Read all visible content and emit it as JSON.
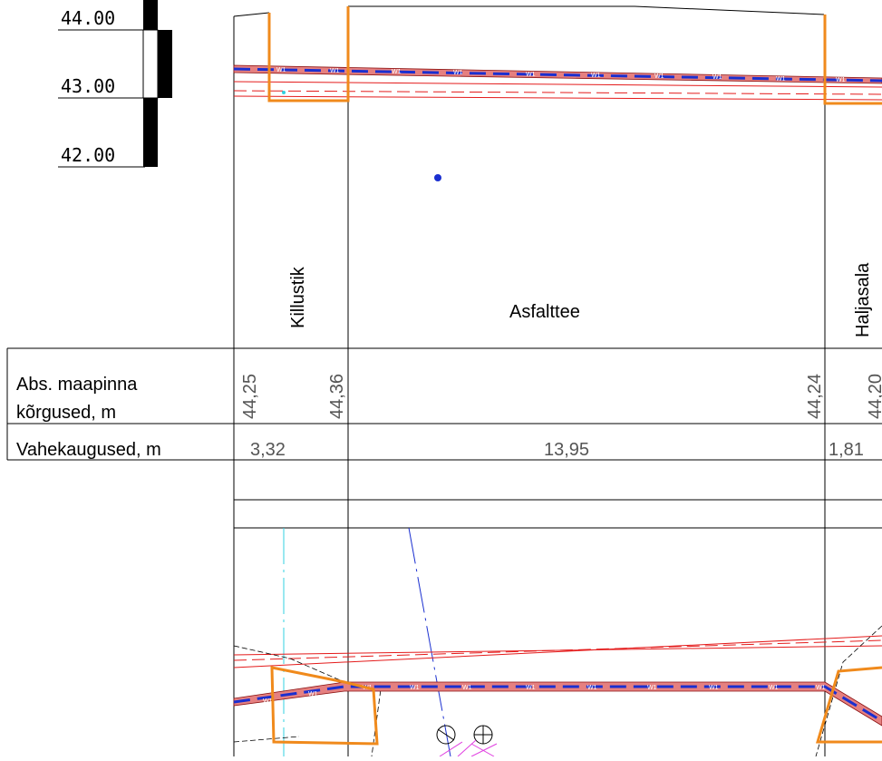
{
  "scale": {
    "labels": [
      "44.00",
      "43.00",
      "42.00"
    ]
  },
  "surfaces": {
    "left": "Killustik",
    "middle": "Asfalttee",
    "right": "Haljasala"
  },
  "table": {
    "row1_label_line1": "Abs. maapinna",
    "row1_label_line2": "kõrgused, m",
    "row2_label": "Vahekaugused, m",
    "elevations": [
      "44,25",
      "44,36",
      "44,24",
      "44,20"
    ],
    "distances": [
      "3,32",
      "13,95",
      "1,81"
    ]
  },
  "utility_tag": "W1",
  "colors": {
    "orange": "#f08a1c",
    "pipe_fill": "#e58080",
    "pipe_dash": "#1a2fd0",
    "red_lines": "#e41b1b",
    "blue_line": "#1a2fd0",
    "cyan_line": "#33d0e0",
    "magenta": "#e040e0"
  }
}
